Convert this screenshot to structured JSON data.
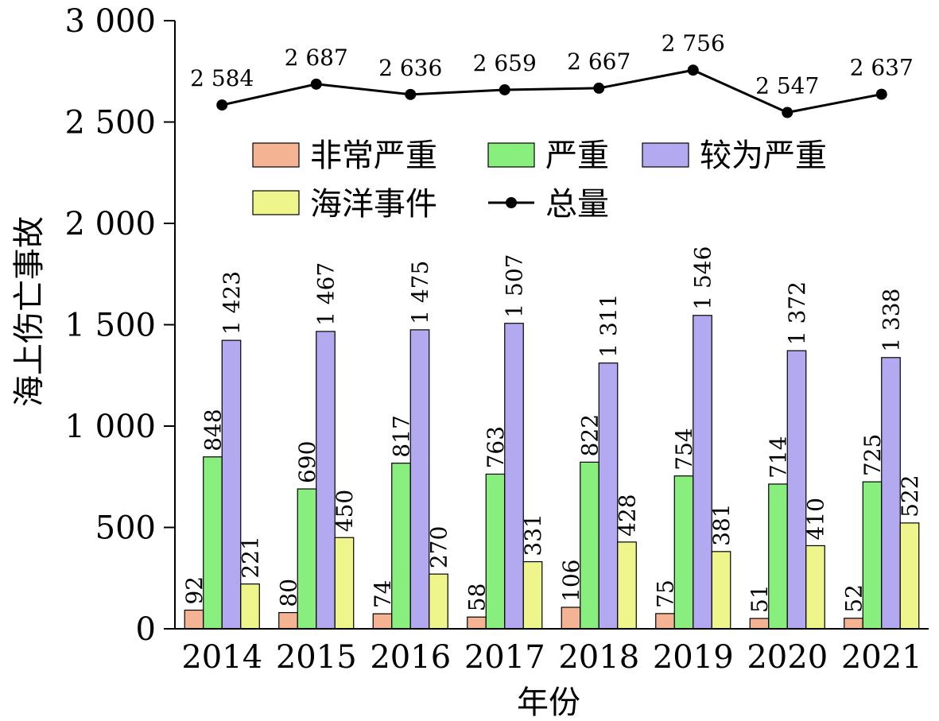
{
  "chart_data": {
    "type": "bar",
    "xlabel": "年份",
    "ylabel": "海上伤亡事故",
    "ylim": [
      0,
      3000
    ],
    "yticks": [
      0,
      500,
      1000,
      1500,
      2000,
      2500,
      3000
    ],
    "ytick_labels": [
      "0",
      "500",
      "1 000",
      "1 500",
      "2 000",
      "2 500",
      "3 000"
    ],
    "categories": [
      "2014",
      "2015",
      "2016",
      "2017",
      "2018",
      "2019",
      "2020",
      "2021"
    ],
    "series": [
      {
        "name": "非常严重",
        "color": "#f4b393",
        "values": [
          92,
          80,
          74,
          58,
          106,
          75,
          51,
          52
        ],
        "labels": [
          "92",
          "80",
          "74",
          "58",
          "106",
          "75",
          "51",
          "52"
        ]
      },
      {
        "name": "严重",
        "color": "#88ee7e",
        "values": [
          848,
          690,
          817,
          763,
          822,
          754,
          714,
          725
        ],
        "labels": [
          "848",
          "690",
          "817",
          "763",
          "822",
          "754",
          "714",
          "725"
        ]
      },
      {
        "name": "较为严重",
        "color": "#b3a9f0",
        "values": [
          1423,
          1467,
          1475,
          1507,
          1311,
          1546,
          1372,
          1338
        ],
        "labels": [
          "1 423",
          "1 467",
          "1 475",
          "1 507",
          "1 311",
          "1 546",
          "1 372",
          "1 338"
        ]
      },
      {
        "name": "海洋事件",
        "color": "#eef58a",
        "values": [
          221,
          450,
          270,
          331,
          428,
          381,
          410,
          522
        ],
        "labels": [
          "221",
          "450",
          "270",
          "331",
          "428",
          "381",
          "410",
          "522"
        ]
      }
    ],
    "line_series": {
      "name": "总量",
      "color": "#000000",
      "values": [
        2584,
        2687,
        2636,
        2659,
        2667,
        2756,
        2547,
        2637
      ],
      "labels": [
        "2 584",
        "2 687",
        "2 636",
        "2 659",
        "2 667",
        "2 756",
        "2 547",
        "2 637"
      ]
    },
    "legend_position": "upper-middle"
  }
}
